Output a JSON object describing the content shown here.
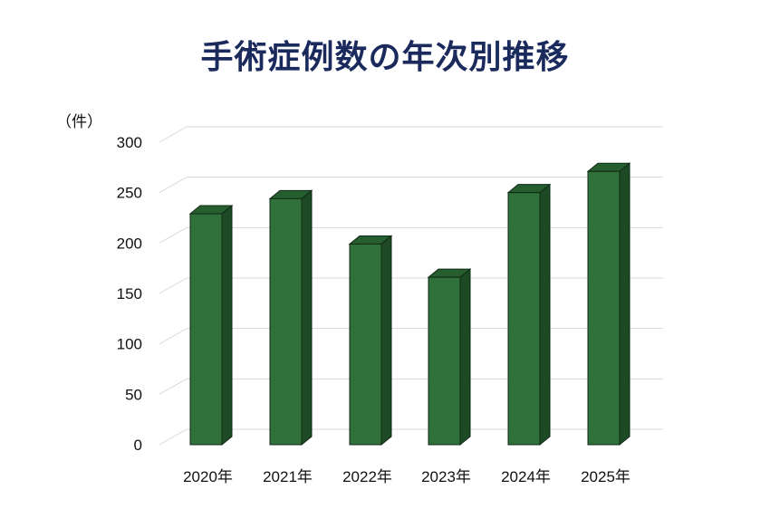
{
  "title": "手術症例数の年次別推移",
  "unit_label": "（件）",
  "colors": {
    "bar_front": "#30703a",
    "bar_side": "#1d4a25",
    "bar_top": "#275e30",
    "edge": "#0f2a14",
    "grid": "#d9d9d9",
    "title": "#1b2a5c"
  },
  "chart_data": {
    "type": "bar",
    "title": "手術症例数の年次別推移",
    "xlabel": "",
    "ylabel": "（件）",
    "categories": [
      "2020年",
      "2021年",
      "2022年",
      "2023年",
      "2024年",
      "2025年"
    ],
    "values": [
      229,
      244,
      199,
      166,
      250,
      271
    ],
    "yticks": [
      0,
      50,
      100,
      150,
      200,
      250,
      300
    ],
    "ylim": [
      0,
      300
    ],
    "grid": true,
    "legend": null,
    "style": "3d-column"
  }
}
